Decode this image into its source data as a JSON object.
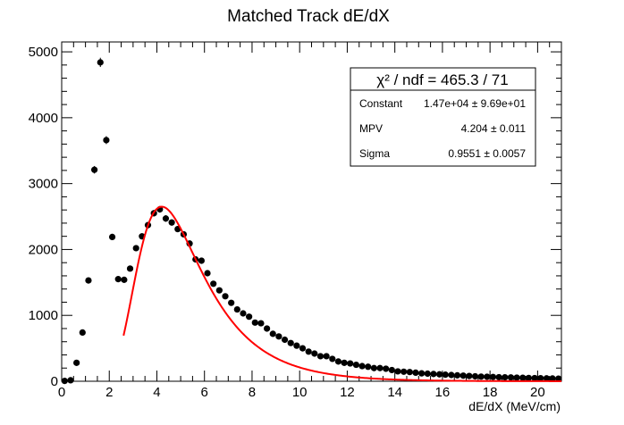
{
  "chart_data": {
    "type": "scatter",
    "title": "Matched Track dE/dX",
    "xlabel": "dE/dX (MeV/cm)",
    "ylabel": "",
    "xlim": [
      0,
      21
    ],
    "ylim": [
      0,
      5150
    ],
    "x_ticks": [
      0,
      2,
      4,
      6,
      8,
      10,
      12,
      14,
      16,
      18,
      20
    ],
    "y_ticks": [
      0,
      1000,
      2000,
      3000,
      4000,
      5000
    ],
    "grid": false,
    "series": [
      {
        "kind": "points-with-errors",
        "color": "#000000",
        "x": [
          0.125,
          0.375,
          0.625,
          0.875,
          1.125,
          1.375,
          1.625,
          1.875,
          2.125,
          2.375,
          2.625,
          2.875,
          3.125,
          3.375,
          3.625,
          3.875,
          4.125,
          4.375,
          4.625,
          4.875,
          5.125,
          5.375,
          5.625,
          5.875,
          6.125,
          6.375,
          6.625,
          6.875,
          7.125,
          7.375,
          7.625,
          7.875,
          8.125,
          8.375,
          8.625,
          8.875,
          9.125,
          9.375,
          9.625,
          9.875,
          10.125,
          10.375,
          10.625,
          10.875,
          11.125,
          11.375,
          11.625,
          11.875,
          12.125,
          12.375,
          12.625,
          12.875,
          13.125,
          13.375,
          13.625,
          13.875,
          14.125,
          14.375,
          14.625,
          14.875,
          15.125,
          15.375,
          15.625,
          15.875,
          16.125,
          16.375,
          16.625,
          16.875,
          17.125,
          17.375,
          17.625,
          17.875,
          18.125,
          18.375,
          18.625,
          18.875,
          19.125,
          19.375,
          19.625,
          19.875,
          20.125,
          20.375,
          20.625,
          20.875
        ],
        "y": [
          5,
          15,
          280,
          740,
          1530,
          3210,
          4840,
          3660,
          2190,
          1550,
          1540,
          1710,
          2020,
          2200,
          2370,
          2550,
          2610,
          2470,
          2410,
          2310,
          2230,
          2090,
          1850,
          1830,
          1640,
          1480,
          1380,
          1290,
          1190,
          1090,
          1030,
          980,
          890,
          880,
          800,
          720,
          680,
          630,
          580,
          540,
          500,
          450,
          420,
          380,
          380,
          340,
          300,
          280,
          270,
          250,
          230,
          220,
          200,
          200,
          190,
          170,
          150,
          145,
          140,
          130,
          120,
          115,
          110,
          105,
          100,
          95,
          90,
          85,
          80,
          75,
          70,
          68,
          65,
          62,
          60,
          58,
          55,
          53,
          50,
          48,
          46,
          44,
          42,
          40
        ],
        "y_err": [
          2,
          4,
          17,
          27,
          39,
          57,
          70,
          60,
          47,
          39,
          39,
          41,
          45,
          47,
          49,
          50,
          51,
          50,
          49,
          48,
          47,
          46,
          43,
          43,
          40,
          38,
          37,
          36,
          34,
          33,
          32,
          31,
          30,
          30,
          28,
          27,
          26,
          25,
          24,
          23,
          22,
          21,
          20,
          19,
          19,
          18,
          17,
          17,
          16,
          16,
          15,
          15,
          14,
          14,
          14,
          13,
          12,
          12,
          12,
          11,
          11,
          11,
          10,
          10,
          10,
          10,
          9,
          9,
          9,
          9,
          8,
          8,
          8,
          8,
          8,
          8,
          7,
          7,
          7,
          7,
          7,
          7,
          6,
          6
        ]
      },
      {
        "kind": "fit-curve",
        "color": "#ff0000",
        "function": "landau",
        "x_range": [
          2.6,
          21
        ]
      }
    ],
    "stats_box": {
      "title": "χ² / ndf = 465.3 / 71",
      "rows": [
        {
          "name": "Constant",
          "value": "1.47e+04 ± 9.69e+01"
        },
        {
          "name": "MPV",
          "value": "4.204 ± 0.011"
        },
        {
          "name": "Sigma",
          "value": "0.9551 ± 0.0057"
        }
      ],
      "position": "top-right"
    },
    "fit_params": {
      "constant": 14700,
      "mpv": 4.204,
      "sigma": 0.9551
    }
  }
}
